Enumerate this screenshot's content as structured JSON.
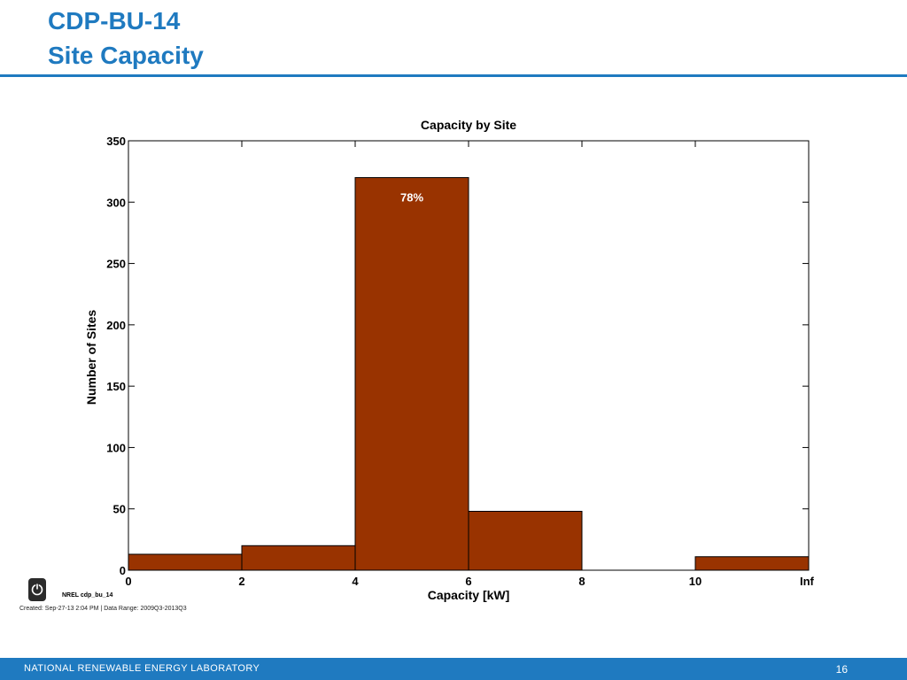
{
  "slide": {
    "title_line1": "CDP-BU-14",
    "title_line2": "Site Capacity",
    "accent_color": "#1f7ac0"
  },
  "chart_data": {
    "type": "bar",
    "title": "Capacity by Site",
    "xlabel": "Capacity [kW]",
    "ylabel": "Number of Sites",
    "bin_edges": [
      "0",
      "2",
      "4",
      "6",
      "8",
      "10",
      "Inf"
    ],
    "values": [
      13,
      20,
      320,
      48,
      0,
      11
    ],
    "bar_labels": [
      "",
      "",
      "78%",
      "",
      "",
      ""
    ],
    "ylim": [
      0,
      350
    ],
    "yticks": [
      0,
      50,
      100,
      150,
      200,
      250,
      300,
      350
    ],
    "bar_color": "#993300",
    "grid": false
  },
  "footnote": {
    "tag": "NREL cdp_bu_14",
    "created": "Created: Sep-27-13  2:04 PM | Data Range: 2009Q3-2013Q3",
    "logo_icon": "power-icon"
  },
  "footer": {
    "org": "NATIONAL RENEWABLE ENERGY LABORATORY",
    "page": "16"
  }
}
